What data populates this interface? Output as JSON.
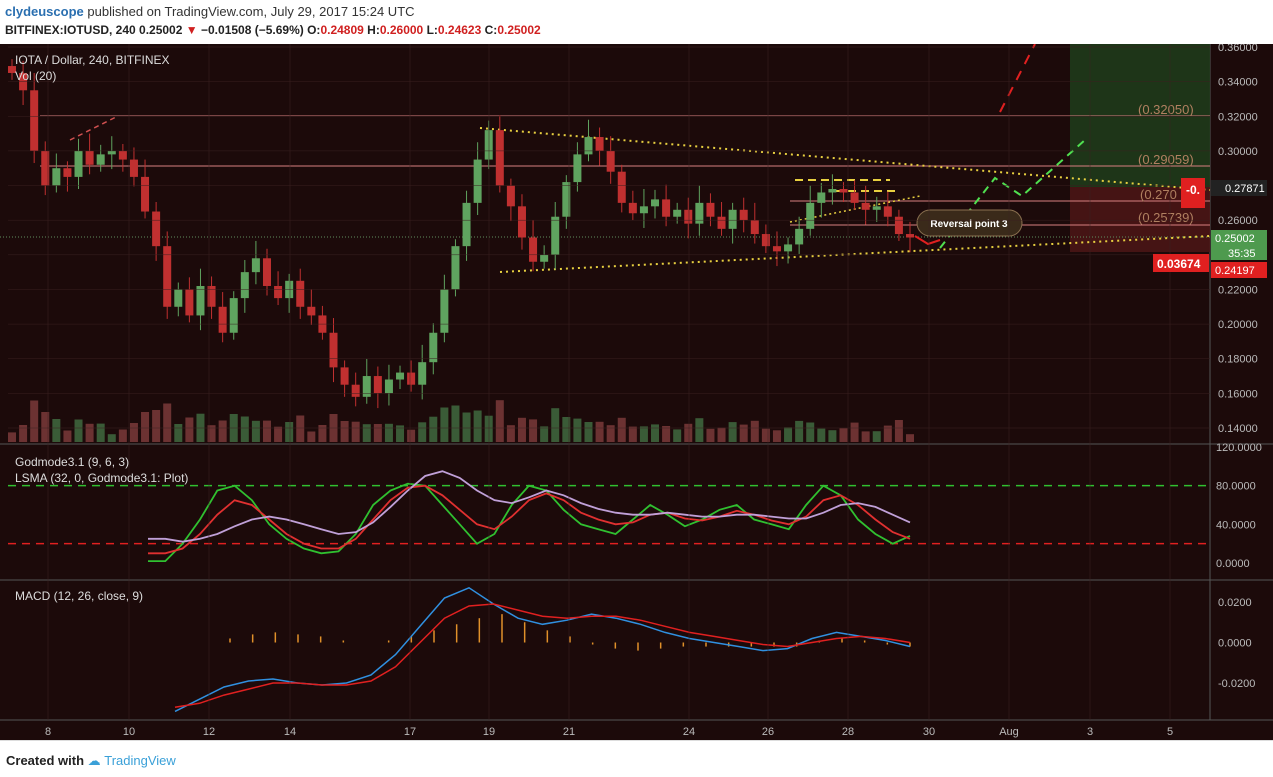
{
  "header": {
    "publisher": "clydeuscope",
    "published_text": "published on TradingView.com, July 29, 2017 15:24 UTC",
    "symbol": "BITFINEX:IOTUSD, 240",
    "last": "0.25002",
    "change": "−0.01508 (−5.69%)",
    "o_label": "O:",
    "o_value": "0.24809",
    "h_label": "H:",
    "h_value": "0.26000",
    "l_label": "L:",
    "l_value": "0.24623",
    "c_label": "C:",
    "c_value": "0.25002"
  },
  "footer": {
    "created_with": "Created with",
    "brand": "TradingView"
  },
  "colors": {
    "bg": "#1c0a0a",
    "up": "#5fa35f",
    "down": "#c03030",
    "grid": "#3a2020"
  },
  "chart_data": [
    {
      "type": "candlestick",
      "title": "IOTA / Dollar, 240, BITFINEX",
      "subtitle": "Vol (20)",
      "ylim": [
        0.128,
        0.368
      ],
      "y_ticks": [
        "0.36000",
        "0.34000",
        "0.32000",
        "0.30000",
        "0.28000",
        "0.26000",
        "0.24000",
        "0.22000",
        "0.20000",
        "0.18000",
        "0.16000",
        "0.14000"
      ],
      "x_ticks": [
        "8",
        "10",
        "12",
        "14",
        "17",
        "19",
        "21",
        "24",
        "26",
        "28",
        "30",
        "Aug",
        "3",
        "5"
      ],
      "closes": [
        0.345,
        0.335,
        0.3,
        0.28,
        0.29,
        0.285,
        0.3,
        0.292,
        0.298,
        0.3,
        0.295,
        0.285,
        0.265,
        0.245,
        0.21,
        0.22,
        0.205,
        0.222,
        0.21,
        0.195,
        0.215,
        0.23,
        0.238,
        0.222,
        0.215,
        0.225,
        0.21,
        0.205,
        0.195,
        0.175,
        0.165,
        0.158,
        0.17,
        0.16,
        0.168,
        0.172,
        0.165,
        0.178,
        0.195,
        0.22,
        0.245,
        0.27,
        0.295,
        0.312,
        0.28,
        0.268,
        0.25,
        0.236,
        0.24,
        0.262,
        0.282,
        0.298,
        0.308,
        0.3,
        0.288,
        0.27,
        0.264,
        0.268,
        0.272,
        0.262,
        0.266,
        0.258,
        0.27,
        0.262,
        0.255,
        0.266,
        0.26,
        0.252,
        0.245,
        0.242,
        0.246,
        0.255,
        0.27,
        0.276,
        0.278,
        0.276,
        0.27,
        0.266,
        0.268,
        0.262,
        0.252,
        0.25
      ],
      "annotations": [
        "(0.32050)",
        "(0.29059)",
        "(0.270",
        "(0.25739)",
        "Reversal point 3"
      ],
      "price_tags": [
        "0.27871",
        "0.25002",
        "35:35",
        "0.24197",
        "0.03674",
        "-0."
      ]
    },
    {
      "type": "line",
      "title": "Godmode3.1 (9, 6, 3)",
      "subtitle": "LSMA (32, 0, Godmode3.1: Plot)",
      "ylim": [
        -8,
        122
      ],
      "y_ticks": [
        "120.0000",
        "80.0000",
        "40.0000",
        "0.0000"
      ],
      "reference_lines": [
        80,
        20
      ],
      "series": [
        {
          "values": [
            2,
            2,
            20,
            45,
            75,
            80,
            65,
            40,
            25,
            15,
            10,
            12,
            30,
            60,
            75,
            82,
            80,
            60,
            40,
            20,
            30,
            60,
            80,
            75,
            55,
            40,
            35,
            30,
            45,
            60,
            50,
            38,
            45,
            55,
            60,
            45,
            40,
            35,
            60,
            80,
            70,
            45,
            30,
            20,
            28
          ]
        },
        {
          "values": [
            10,
            10,
            15,
            30,
            50,
            65,
            60,
            45,
            30,
            20,
            15,
            15,
            25,
            45,
            65,
            78,
            80,
            70,
            55,
            40,
            35,
            48,
            65,
            72,
            65,
            52,
            45,
            40,
            42,
            50,
            52,
            46,
            44,
            48,
            54,
            50,
            44,
            40,
            48,
            65,
            70,
            60,
            45,
            32,
            25
          ]
        },
        {
          "values": [
            25,
            25,
            22,
            25,
            30,
            38,
            45,
            48,
            45,
            40,
            35,
            30,
            32,
            42,
            58,
            75,
            90,
            95,
            88,
            75,
            65,
            62,
            68,
            75,
            70,
            62,
            56,
            52,
            50,
            50,
            52,
            50,
            48,
            48,
            50,
            50,
            48,
            46,
            46,
            52,
            60,
            62,
            58,
            50,
            42
          ]
        }
      ]
    },
    {
      "type": "line",
      "title": "MACD (12, 26, close, 9)",
      "ylim": [
        -0.03,
        0.029
      ],
      "y_ticks": [
        "0.0200",
        "0.0000",
        "-0.0200"
      ],
      "series": [
        {
          "values": [
            -0.034,
            -0.028,
            -0.022,
            -0.019,
            -0.018,
            -0.02,
            -0.021,
            -0.02,
            -0.016,
            -0.006,
            0.008,
            0.022,
            0.027,
            0.019,
            0.012,
            0.009,
            0.011,
            0.014,
            0.012,
            0.009,
            0.005,
            0.002,
            0.0,
            -0.002,
            -0.004,
            -0.003,
            0.002,
            0.005,
            0.003,
            0.001,
            -0.002
          ]
        },
        {
          "values": [
            -0.032,
            -0.03,
            -0.026,
            -0.023,
            -0.02,
            -0.02,
            -0.021,
            -0.021,
            -0.019,
            -0.012,
            0.0,
            0.012,
            0.018,
            0.019,
            0.016,
            0.013,
            0.012,
            0.013,
            0.013,
            0.011,
            0.008,
            0.005,
            0.003,
            0.001,
            -0.001,
            -0.002,
            0.0,
            0.002,
            0.003,
            0.002,
            0.0
          ]
        }
      ],
      "histogram": [
        0.002,
        0.004,
        0.005,
        0.004,
        0.003,
        0.001,
        0.0,
        0.001,
        0.003,
        0.006,
        0.009,
        0.012,
        0.014,
        0.01,
        0.006,
        0.003,
        -0.001,
        -0.003,
        -0.004,
        -0.003,
        -0.002,
        -0.002,
        -0.002,
        -0.002,
        -0.002,
        -0.002,
        0.001,
        0.002,
        0.001,
        -0.001,
        -0.002
      ]
    }
  ]
}
